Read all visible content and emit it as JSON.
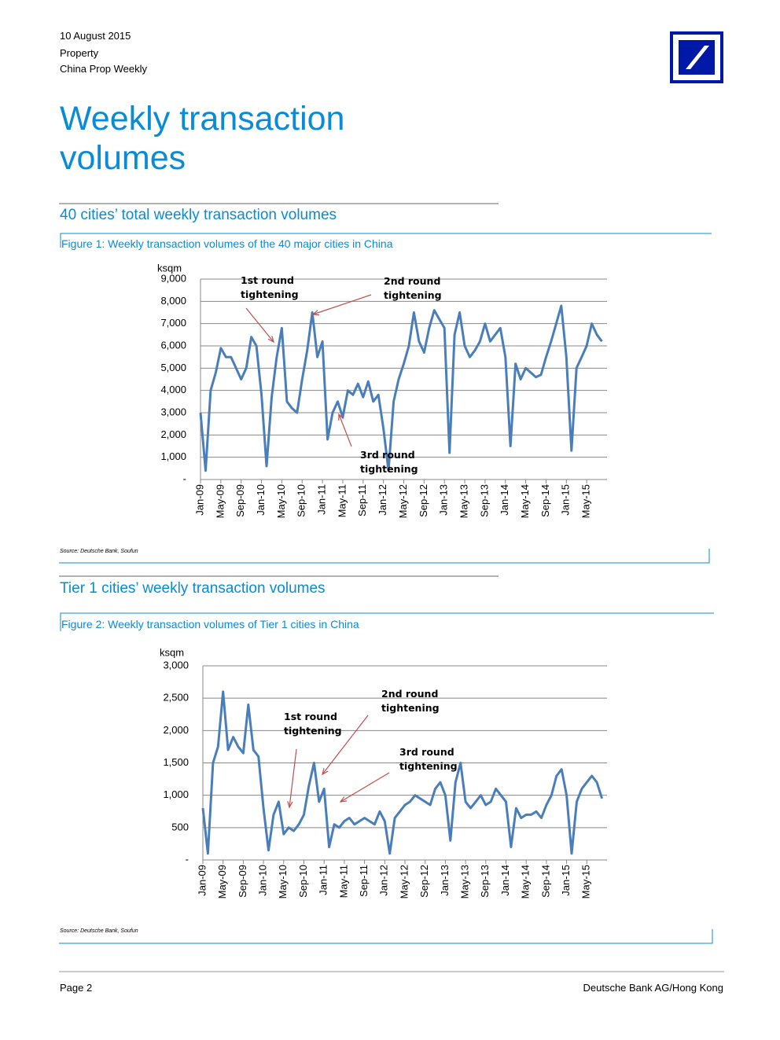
{
  "header": {
    "date": "10 August 2015",
    "category": "Property",
    "publication": "China Prop Weekly"
  },
  "title": "Weekly transaction volumes",
  "sections": [
    {
      "heading": "40 cities’ total weekly transaction volumes",
      "figure": "Figure 1: Weekly transaction volumes of the 40 major cities in China",
      "source": "Source: Deutsche Bank, Soufun"
    },
    {
      "heading": "Tier 1 cities’ weekly transaction volumes",
      "figure": "Figure 2: Weekly transaction volumes of Tier 1 cities in China",
      "source": "Source: Deutsche Bank, Soufun"
    }
  ],
  "chart_data": [
    {
      "type": "line",
      "y_label": "ksqm",
      "color": "#4a7ebb",
      "grid": true,
      "categories": [
        "Jan-09",
        null,
        null,
        null,
        "May-09",
        null,
        null,
        null,
        "Sep-09",
        null,
        null,
        null,
        "Jan-10",
        null,
        null,
        null,
        "May-10",
        null,
        null,
        null,
        "Sep-10",
        null,
        null,
        null,
        "Jan-11",
        null,
        null,
        null,
        "May-11",
        null,
        null,
        null,
        "Sep-11",
        null,
        null,
        null,
        "Jan-12",
        null,
        null,
        null,
        "May-12",
        null,
        null,
        null,
        "Sep-12",
        null,
        null,
        null,
        "Jan-13",
        null,
        null,
        null,
        "May-13",
        null,
        null,
        null,
        "Sep-13",
        null,
        null,
        null,
        "Jan-14",
        null,
        null,
        null,
        "May-14",
        null,
        null,
        null,
        "Sep-14",
        null,
        null,
        null,
        "Jan-15",
        null,
        null,
        null,
        "May-15",
        null,
        null,
        null
      ],
      "values": [
        3000,
        400,
        4000,
        4800,
        5900,
        5500,
        5500,
        5000,
        4500,
        5000,
        6400,
        6000,
        3800,
        600,
        3700,
        5500,
        6800,
        3500,
        3200,
        3000,
        4500,
        5800,
        7500,
        5500,
        6200,
        1800,
        3000,
        3500,
        2800,
        4000,
        3800,
        4300,
        3700,
        4400,
        3500,
        3800,
        2300,
        400,
        3500,
        4500,
        5200,
        6000,
        7500,
        6200,
        5700,
        6800,
        7600,
        7200,
        6800,
        1200,
        6500,
        7500,
        6000,
        5500,
        5800,
        6200,
        7000,
        6200,
        6500,
        6800,
        5500,
        1500,
        5200,
        4500,
        5000,
        4800,
        4600,
        4700,
        5500,
        6200,
        7000,
        7800,
        5500,
        1300,
        5000,
        5500,
        6000,
        7000,
        6500,
        6200
      ],
      "ylim": [
        0,
        9000
      ],
      "yticks": [
        {
          "value": 0,
          "label": "-"
        },
        {
          "value": 1000,
          "label": "1,000"
        },
        {
          "value": 2000,
          "label": "2,000"
        },
        {
          "value": 3000,
          "label": "3,000"
        },
        {
          "value": 4000,
          "label": "4,000"
        },
        {
          "value": 5000,
          "label": "5,000"
        },
        {
          "value": 6000,
          "label": "6,000"
        },
        {
          "value": 7000,
          "label": "7,000"
        },
        {
          "value": 8000,
          "label": "8,000"
        },
        {
          "value": 9000,
          "label": "9,000"
        }
      ],
      "annotations": [
        "1st round tightening",
        "2nd round tightening",
        "3rd round tightening"
      ]
    },
    {
      "type": "line",
      "y_label": "ksqm",
      "color": "#4a7ebb",
      "grid": true,
      "categories": [
        "Jan-09",
        null,
        null,
        null,
        "May-09",
        null,
        null,
        null,
        "Sep-09",
        null,
        null,
        null,
        "Jan-10",
        null,
        null,
        null,
        "May-10",
        null,
        null,
        null,
        "Sep-10",
        null,
        null,
        null,
        "Jan-11",
        null,
        null,
        null,
        "May-11",
        null,
        null,
        null,
        "Sep-11",
        null,
        null,
        null,
        "Jan-12",
        null,
        null,
        null,
        "May-12",
        null,
        null,
        null,
        "Sep-12",
        null,
        null,
        null,
        "Jan-13",
        null,
        null,
        null,
        "May-13",
        null,
        null,
        null,
        "Sep-13",
        null,
        null,
        null,
        "Jan-14",
        null,
        null,
        null,
        "May-14",
        null,
        null,
        null,
        "Sep-14",
        null,
        null,
        null,
        "Jan-15",
        null,
        null,
        null,
        "May-15",
        null,
        null,
        null
      ],
      "values": [
        800,
        100,
        1500,
        1750,
        2600,
        1700,
        1900,
        1750,
        1650,
        2400,
        1700,
        1600,
        800,
        150,
        700,
        900,
        400,
        500,
        450,
        550,
        700,
        1150,
        1500,
        900,
        1100,
        200,
        550,
        500,
        600,
        650,
        550,
        600,
        650,
        600,
        550,
        750,
        600,
        100,
        650,
        750,
        850,
        900,
        1000,
        950,
        900,
        850,
        1100,
        1200,
        1000,
        300,
        1200,
        1500,
        900,
        800,
        900,
        1000,
        850,
        900,
        1100,
        1000,
        900,
        200,
        800,
        650,
        700,
        700,
        750,
        650,
        850,
        1000,
        1300,
        1400,
        1000,
        100,
        900,
        1100,
        1200,
        1300,
        1200,
        950
      ],
      "ylim": [
        0,
        3000
      ],
      "yticks": [
        {
          "value": 0,
          "label": "-"
        },
        500,
        {
          "value": 1000,
          "label": "1,000"
        },
        {
          "value": 1500,
          "label": "1,500"
        },
        {
          "value": 2000,
          "label": "2,000"
        },
        {
          "value": 2500,
          "label": "2,500"
        },
        {
          "value": 3000,
          "label": "3,000"
        }
      ],
      "annotations": [
        "2nd round tightening",
        "1st round tightening",
        "3rd round tightening"
      ]
    }
  ],
  "footer": {
    "page": "Page 2",
    "company": "Deutsche Bank AG/Hong Kong"
  }
}
